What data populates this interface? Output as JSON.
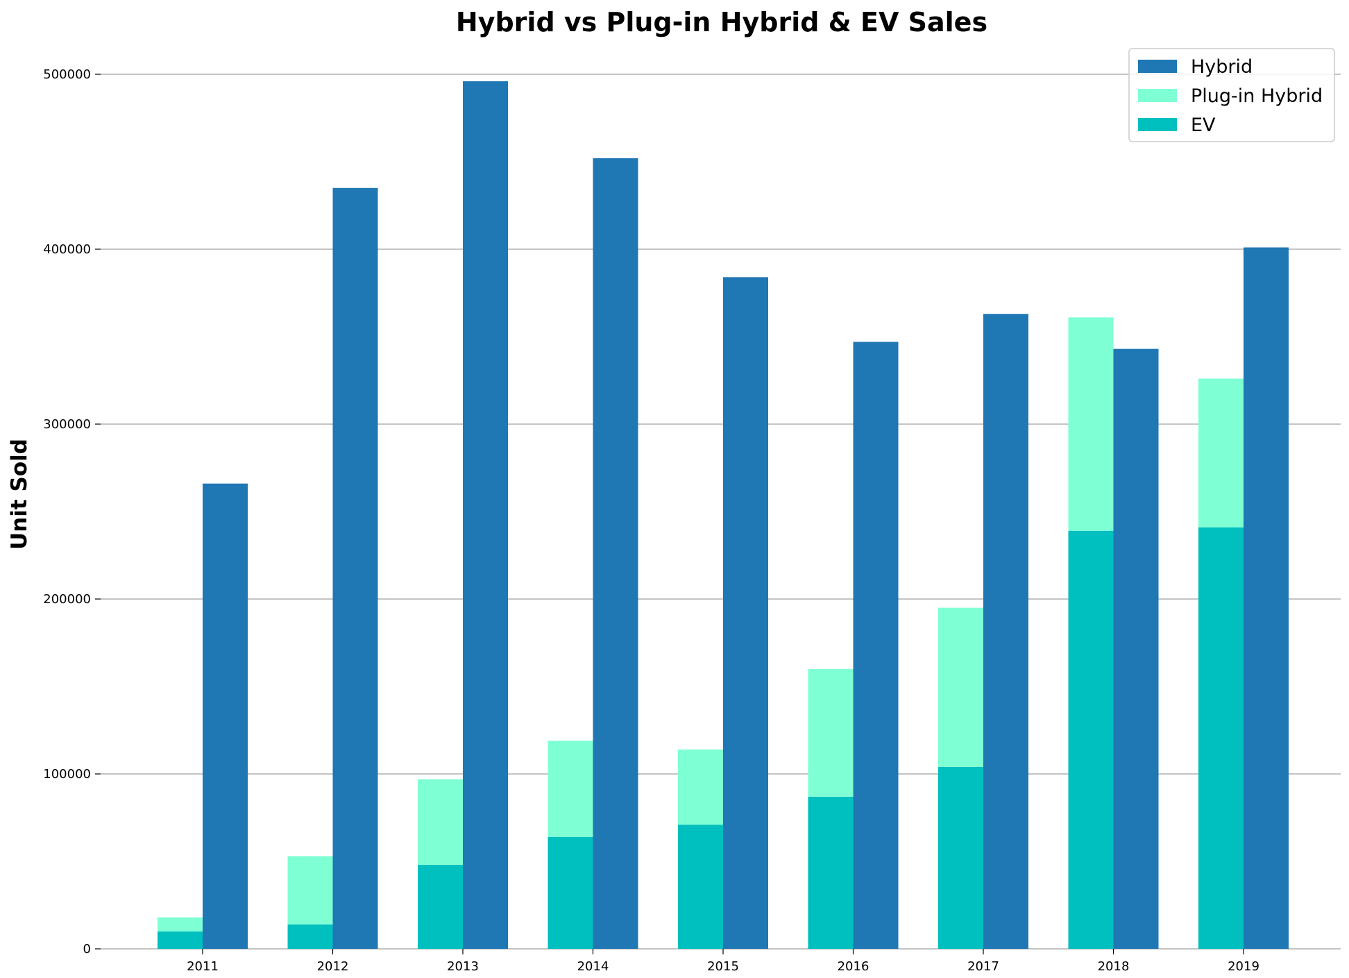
{
  "chart_data": {
    "type": "bar",
    "title": "Hybrid vs Plug-in Hybrid & EV Sales",
    "ylabel": "Unit Sold",
    "xlabel": "",
    "categories": [
      "2011",
      "2012",
      "2013",
      "2014",
      "2015",
      "2016",
      "2017",
      "2018",
      "2019"
    ],
    "ylim": [
      0,
      500000
    ],
    "yticks": [
      0,
      100000,
      200000,
      300000,
      400000,
      500000
    ],
    "ytick_labels": [
      "0",
      "100000",
      "200000",
      "300000",
      "400000",
      "500000"
    ],
    "grid": "horizontal",
    "legend_position": "top-right",
    "series": [
      {
        "name": "Hybrid",
        "color": "#1f77b4",
        "group": "right",
        "values": [
          266000,
          435000,
          496000,
          452000,
          384000,
          347000,
          363000,
          343000,
          401000
        ]
      },
      {
        "name": "Plug-in Hybrid",
        "color": "#7fffd4",
        "group": "left-stacked-top",
        "values": [
          8000,
          39000,
          49000,
          55000,
          43000,
          73000,
          91000,
          122000,
          85000
        ]
      },
      {
        "name": "EV",
        "color": "#00bfbf",
        "group": "left-stacked-bottom",
        "values": [
          10000,
          14000,
          48000,
          64000,
          71000,
          87000,
          104000,
          239000,
          241000
        ]
      }
    ]
  }
}
